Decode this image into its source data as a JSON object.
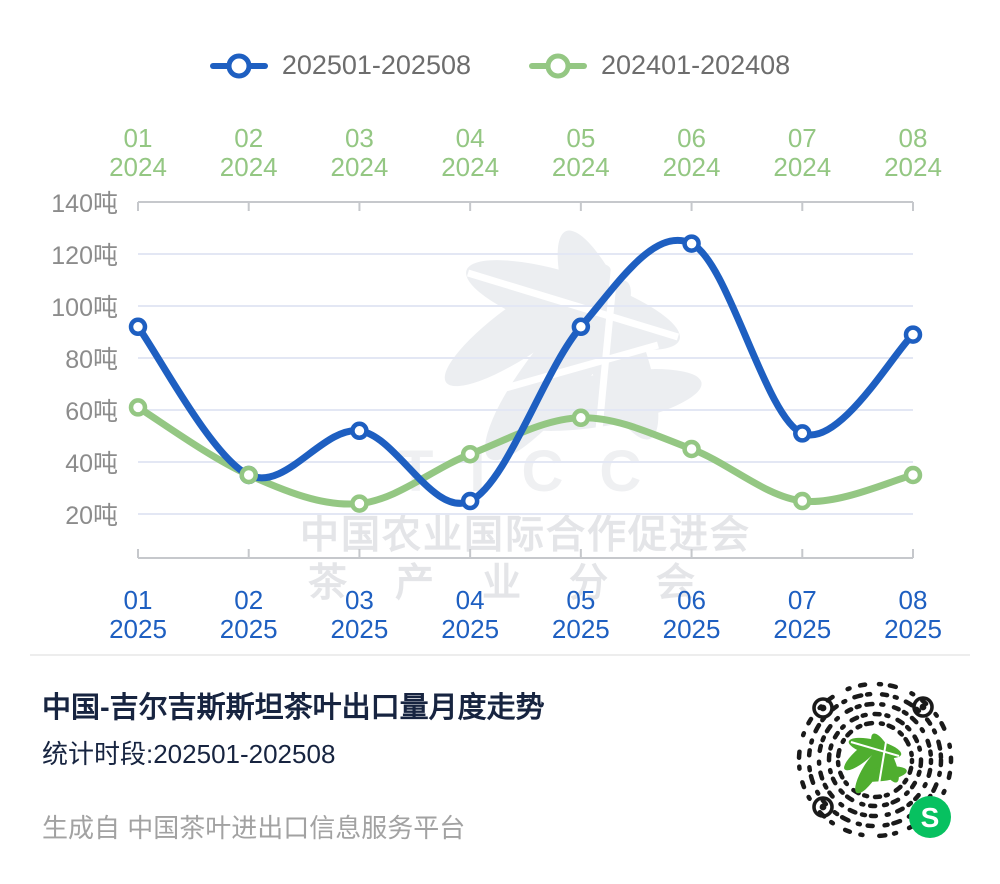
{
  "legend": {
    "series1_label": "202501-202508",
    "series2_label": "202401-202408"
  },
  "chart_data": {
    "type": "line",
    "title": "中国-吉尔吉斯斯坦茶叶出口量月度走势",
    "unit": "吨",
    "smooth": true,
    "grid": true,
    "legend_position": "top",
    "ylim": [
      20,
      140
    ],
    "y_ticks": [
      140,
      120,
      100,
      80,
      60,
      40,
      20
    ],
    "y_tick_suffix": "吨",
    "categories": [
      "01",
      "02",
      "03",
      "04",
      "05",
      "06",
      "07",
      "08"
    ],
    "series": [
      {
        "name": "202501-202508",
        "year": "2025",
        "axis": "bottom",
        "color": "#1e5fc1",
        "values": [
          92,
          35,
          52,
          25,
          92,
          124,
          51,
          89
        ]
      },
      {
        "name": "202401-202408",
        "year": "2024",
        "axis": "top",
        "color": "#94c783",
        "values": [
          61,
          35,
          24,
          43,
          57,
          45,
          25,
          35
        ]
      }
    ]
  },
  "watermark": {
    "letters": "TICC",
    "line1": "中国农业国际合作促进会",
    "line2": "茶产业分会"
  },
  "footer": {
    "title": "中国-吉尔吉斯斯坦茶叶出口量月度走势",
    "subtitle": "统计时段:202501-202508",
    "source": "生成自 中国茶叶进出口信息服务平台"
  },
  "colors": {
    "series_2025_blue": "#1e5fc1",
    "series_2024_green": "#94c783",
    "title_navy": "#172440",
    "axis_label_gray": "#8c8c8c",
    "legend_text_gray": "#6d6d6d",
    "gridline": "#e3e7f4",
    "axis_line": "#c6c8cc",
    "source_gray": "#a2a2a2",
    "qr_leaf_green": "#4fae2f",
    "miniprogram_badge_green": "#07c160"
  }
}
